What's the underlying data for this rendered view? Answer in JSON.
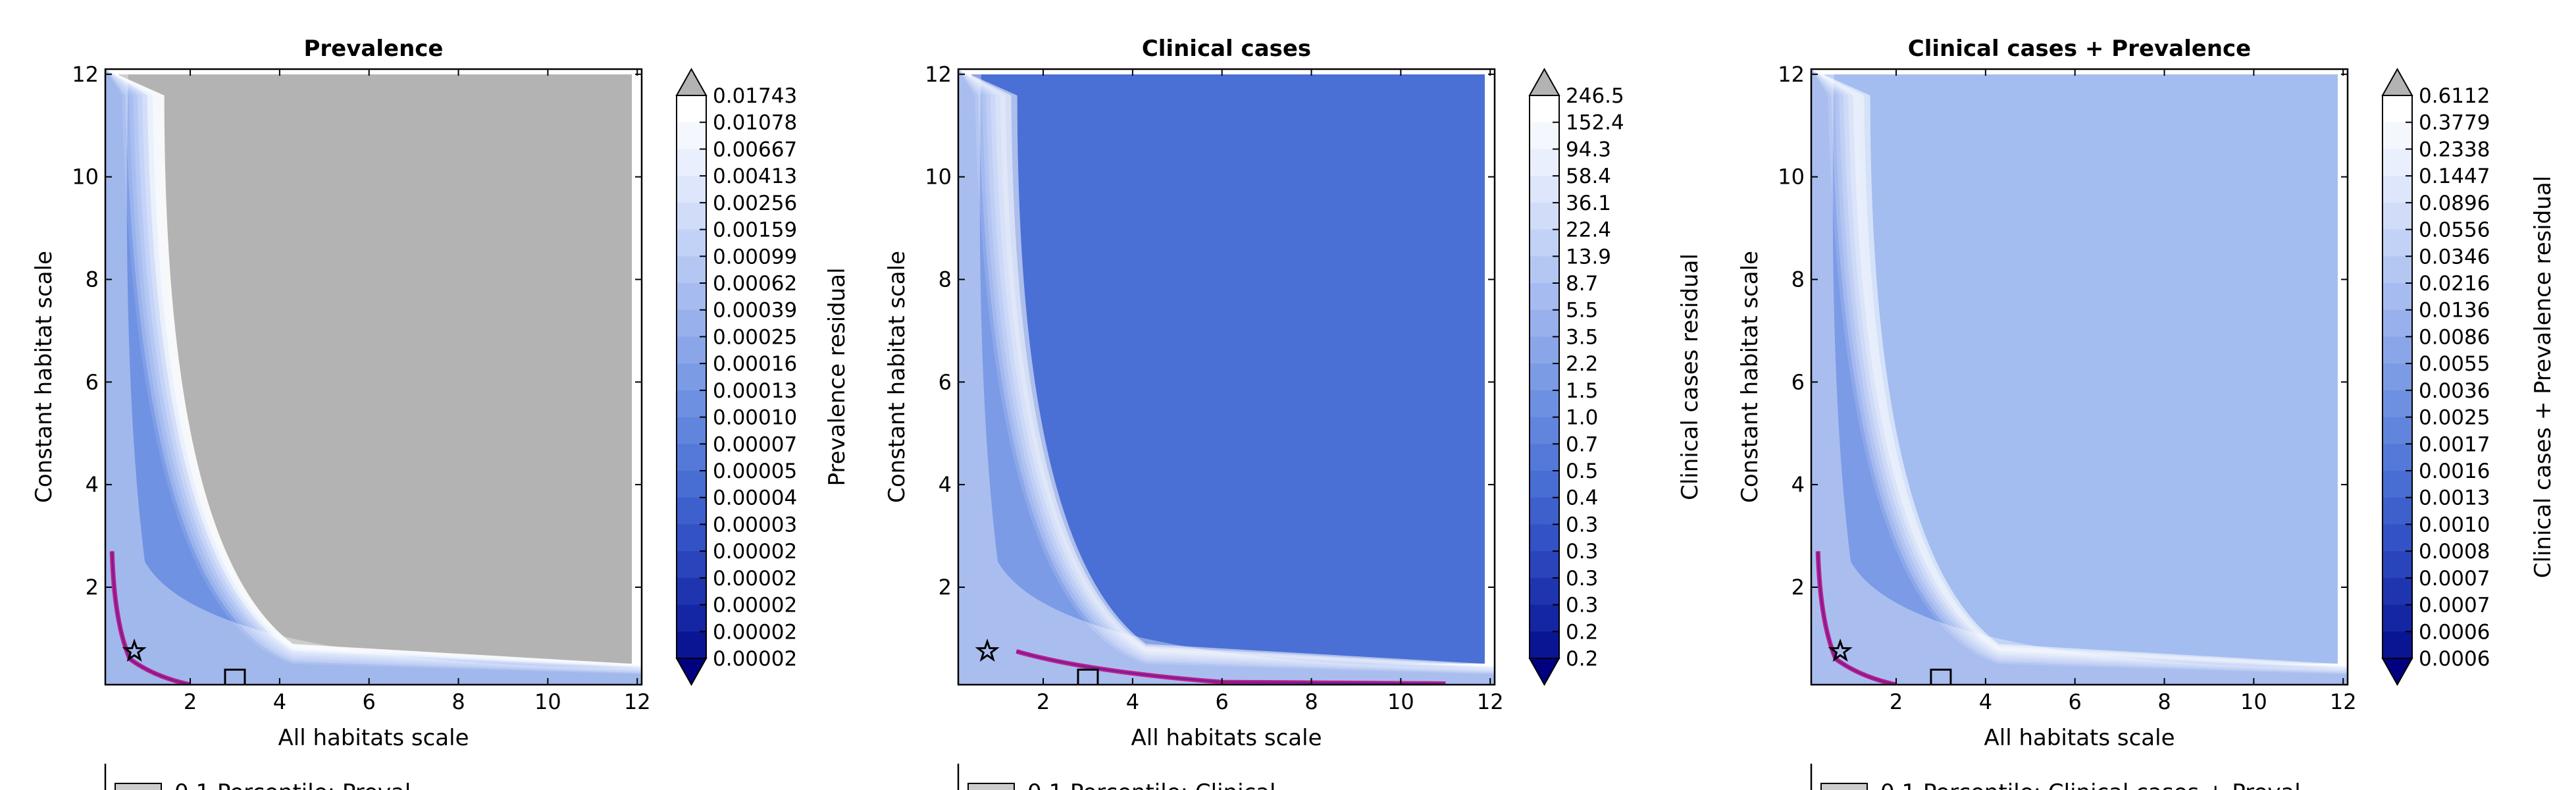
{
  "figure": {
    "background": "#ffffff"
  },
  "chart_data": [
    {
      "type": "heatmap",
      "title": "Prevalence",
      "xlabel": "All habitats scale",
      "ylabel": "Constant habitat scale",
      "xlim": [
        0.1,
        12.1
      ],
      "ylim": [
        0.1,
        12.1
      ],
      "xticks": [
        "2",
        "4",
        "6",
        "8",
        "10",
        "12"
      ],
      "yticks": [
        "2",
        "4",
        "6",
        "8",
        "10",
        "12"
      ],
      "colorbar_label": "Prevalence residual",
      "colorbar_levels": [
        "0.01743",
        "0.01078",
        "0.00667",
        "0.00413",
        "0.00256",
        "0.00159",
        "0.00099",
        "0.00062",
        "0.00039",
        "0.00025",
        "0.00016",
        "0.00013",
        "0.00010",
        "0.00007",
        "0.00005",
        "0.00004",
        "0.00003",
        "0.00002",
        "0.00002",
        "0.00002",
        "0.00002",
        "0.00002"
      ],
      "background_fill": "#b3b3b3",
      "markers": {
        "star": [
          0.75,
          0.75
        ],
        "square": [
          3.0,
          0.2
        ]
      },
      "legend_partial": "0.1 Percentile: Preval"
    },
    {
      "type": "heatmap",
      "title": "Clinical cases",
      "xlabel": "All habitats scale",
      "ylabel": "Constant habitat scale",
      "xlim": [
        0.1,
        12.1
      ],
      "ylim": [
        0.1,
        12.1
      ],
      "xticks": [
        "2",
        "4",
        "6",
        "8",
        "10",
        "12"
      ],
      "yticks": [
        "2",
        "4",
        "6",
        "8",
        "10",
        "12"
      ],
      "colorbar_label": "Clinical cases residual",
      "colorbar_levels": [
        "246.5",
        "152.4",
        "94.3",
        "58.4",
        "36.1",
        "22.4",
        "13.9",
        "8.7",
        "5.5",
        "3.5",
        "2.2",
        "1.5",
        "1.0",
        "0.7",
        "0.5",
        "0.4",
        "0.3",
        "0.3",
        "0.3",
        "0.3",
        "0.2",
        "0.2"
      ],
      "background_fill": "#4a70d6",
      "markers": {
        "star": [
          0.75,
          0.75
        ],
        "square": [
          3.0,
          0.2
        ]
      },
      "legend_partial": "0.1 Percentile: Clinical"
    },
    {
      "type": "heatmap",
      "title": "Clinical cases + Prevalence",
      "xlabel": "All habitats scale",
      "ylabel": "Constant habitat scale",
      "xlim": [
        0.1,
        12.1
      ],
      "ylim": [
        0.1,
        12.1
      ],
      "xticks": [
        "2",
        "4",
        "6",
        "8",
        "10",
        "12"
      ],
      "yticks": [
        "2",
        "4",
        "6",
        "8",
        "10",
        "12"
      ],
      "colorbar_label": "Clinical cases + Prevalence residual",
      "colorbar_levels": [
        "0.6112",
        "0.3779",
        "0.2338",
        "0.1447",
        "0.0896",
        "0.0556",
        "0.0346",
        "0.0216",
        "0.0136",
        "0.0086",
        "0.0055",
        "0.0036",
        "0.0025",
        "0.0017",
        "0.0016",
        "0.0013",
        "0.0010",
        "0.0008",
        "0.0007",
        "0.0007",
        "0.0006",
        "0.0006"
      ],
      "background_fill": "#a3bdf0",
      "markers": {
        "star": [
          0.75,
          0.75
        ],
        "square": [
          3.0,
          0.2
        ]
      },
      "legend_partial": "0.1 Percentile: Clinical cases + Preval"
    }
  ]
}
